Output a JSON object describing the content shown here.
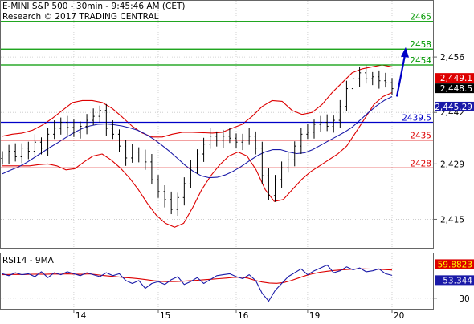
{
  "header": {
    "line1": "E-MINI S&P 500 - 30min - 9:45:46 AM (CET)",
    "line2": "Research © 2017 TRADING CENTRAL"
  },
  "colors": {
    "candle": "#000000",
    "bollinger": "#dd0000",
    "ma": "#1a1aa8",
    "resistance": "#009900",
    "pivot": "#0000c8",
    "support": "#dd0000",
    "arrow": "#0000c8",
    "rsi": "#1a1aa8",
    "rsi_ma": "#dd0000",
    "last_tag_bg": "#dd0000",
    "price_tag_bg": "#000000",
    "ma_tag_bg": "#1a1aa8",
    "grid": "#c8c8c8"
  },
  "chart_data": [
    {
      "type": "candlestick",
      "title": "E-MINI S&P 500 - 30min - 9:45:46 AM (CET)",
      "ylim": [
        2408,
        2470
      ],
      "y_ticks": [
        "2,456",
        "2,442",
        "2,429",
        "2,415"
      ],
      "y_tick_values": [
        2456,
        2442,
        2429,
        2415
      ],
      "x_ticks": [
        "14",
        "15",
        "16",
        "19",
        "20"
      ],
      "x_tick_index": [
        11,
        24,
        36,
        47,
        60
      ],
      "grid": true,
      "close": [
        2431.0,
        2432.2,
        2430.8,
        2433.0,
        2432.2,
        2434.5,
        2433.0,
        2436.5,
        2438.0,
        2439.5,
        2438.2,
        2437.0,
        2438.5,
        2440.0,
        2441.0,
        2442.5,
        2438.0,
        2436.5,
        2433.5,
        2430.5,
        2432.0,
        2431.0,
        2429.5,
        2425.0,
        2422.0,
        2420.0,
        2417.5,
        2420.5,
        2424.0,
        2428.0,
        2431.5,
        2434.0,
        2436.0,
        2435.0,
        2436.0,
        2435.5,
        2434.5,
        2435.0,
        2436.0,
        2433.0,
        2426.0,
        2421.0,
        2425.0,
        2428.0,
        2430.0,
        2433.5,
        2436.5,
        2437.0,
        2439.0,
        2439.5,
        2438.5,
        2440.0,
        2443.5,
        2448.0,
        2450.5,
        2452.0,
        2450.5,
        2451.0,
        2450.0,
        2449.5,
        2448.0
      ],
      "ma_9": [
        2426.5,
        2427.4,
        2428.2,
        2429.3,
        2430.6,
        2431.9,
        2433.2,
        2434.4,
        2435.7,
        2436.9,
        2437.9,
        2438.6,
        2439.0,
        2439.1,
        2438.9,
        2438.6,
        2438.1,
        2437.5,
        2436.5,
        2435.3,
        2433.8,
        2432.2,
        2430.4,
        2428.6,
        2427.1,
        2426.0,
        2425.5,
        2425.6,
        2426.2,
        2427.1,
        2428.3,
        2429.7,
        2431.0,
        2432.0,
        2432.6,
        2432.6,
        2432.0,
        2431.6,
        2431.8,
        2432.6,
        2433.7,
        2434.8,
        2435.9,
        2437.0,
        2438.3,
        2440.1,
        2441.9,
        2443.6,
        2445.0,
        2446.0
      ],
      "boll_upper": [
        2436.0,
        2436.5,
        2436.8,
        2437.5,
        2438.8,
        2440.5,
        2442.5,
        2444.5,
        2445.0,
        2445.0,
        2444.5,
        2443.0,
        2440.8,
        2438.5,
        2436.8,
        2435.8,
        2435.8,
        2436.5,
        2437.0,
        2437.0,
        2436.9,
        2436.8,
        2437.0,
        2438.0,
        2439.0,
        2441.0,
        2443.5,
        2445.0,
        2444.8,
        2442.5,
        2441.5,
        2442.0,
        2444.0,
        2447.0,
        2449.5,
        2452.0,
        2453.0,
        2453.5,
        2454.0,
        2453.5
      ],
      "boll_lower": [
        2428.5,
        2428.5,
        2428.5,
        2428.5,
        2428.8,
        2429.0,
        2428.5,
        2427.5,
        2427.8,
        2429.5,
        2431.0,
        2431.5,
        2430.0,
        2428.0,
        2425.5,
        2422.5,
        2419.0,
        2416.0,
        2414.0,
        2413.0,
        2414.0,
        2418.0,
        2422.5,
        2426.0,
        2428.8,
        2431.0,
        2432.0,
        2431.0,
        2427.5,
        2422.5,
        2419.5,
        2420.0,
        2422.5,
        2425.0,
        2427.0,
        2428.5,
        2430.0,
        2431.5,
        2433.5,
        2437.0,
        2440.5,
        2444.0,
        2446.0,
        2447.0
      ],
      "levels": [
        {
          "label": "2465",
          "value": 2465,
          "kind": "resistance"
        },
        {
          "label": "2458",
          "value": 2458,
          "kind": "resistance"
        },
        {
          "label": "2454",
          "value": 2454,
          "kind": "resistance"
        },
        {
          "label": "2439.5",
          "value": 2439.5,
          "kind": "pivot"
        },
        {
          "label": "2435",
          "value": 2435,
          "kind": "support"
        },
        {
          "label": "2428",
          "value": 2428,
          "kind": "support"
        }
      ],
      "tags": [
        {
          "label": "2,449.1",
          "value": 2449.1,
          "kind": "last"
        },
        {
          "label": "2,448.5",
          "value": 2448.5,
          "kind": "price"
        },
        {
          "label": "2,445.29",
          "value": 2445.29,
          "kind": "ma"
        }
      ],
      "arrow": {
        "from": [
          2448,
          2446
        ],
        "to": [
          2452,
          2458.5
        ]
      }
    },
    {
      "type": "line",
      "title": "RSI14 - 9MA",
      "ylim": [
        20,
        75
      ],
      "y_ticks": [
        "30"
      ],
      "y_tick_values": [
        30
      ],
      "rsi": [
        55,
        53,
        56,
        54,
        55,
        52,
        57,
        51,
        56,
        54,
        57,
        55,
        53,
        56,
        54,
        52,
        56,
        53,
        55,
        48,
        45,
        48,
        40,
        45,
        47,
        44,
        49,
        52,
        44,
        47,
        51,
        45,
        49,
        53,
        54,
        55,
        52,
        50,
        54,
        48,
        35,
        27,
        38,
        45,
        52,
        56,
        60,
        54,
        58,
        61,
        64,
        56,
        58,
        62,
        59,
        61,
        57,
        58,
        60,
        55,
        53.3
      ],
      "rsi_ma": [
        54,
        54.2,
        54.3,
        54.1,
        54.5,
        54.6,
        54.4,
        54.7,
        54.5,
        54.8,
        54.6,
        54.4,
        54.8,
        54.1,
        53.2,
        52.5,
        51.8,
        51.0,
        50.5,
        49.8,
        48.9,
        47.8,
        47.2,
        46.9,
        47.0,
        47.3,
        47.8,
        48.3,
        48.9,
        49.4,
        50.0,
        50.5,
        51.2,
        51.5,
        50.5,
        48.2,
        46.5,
        45.5,
        45.2,
        46.0,
        48.0,
        50.5,
        53.0,
        55.0,
        56.5,
        57.5,
        58.3,
        58.9,
        59.4,
        59.9,
        60.0,
        59.8,
        59.7,
        59.2,
        58.8
      ],
      "tags": [
        {
          "label": "59.8823",
          "value": 59.8823,
          "kind": "rsi_ma"
        },
        {
          "label": "53.344",
          "value": 53.344,
          "kind": "rsi"
        }
      ]
    }
  ]
}
